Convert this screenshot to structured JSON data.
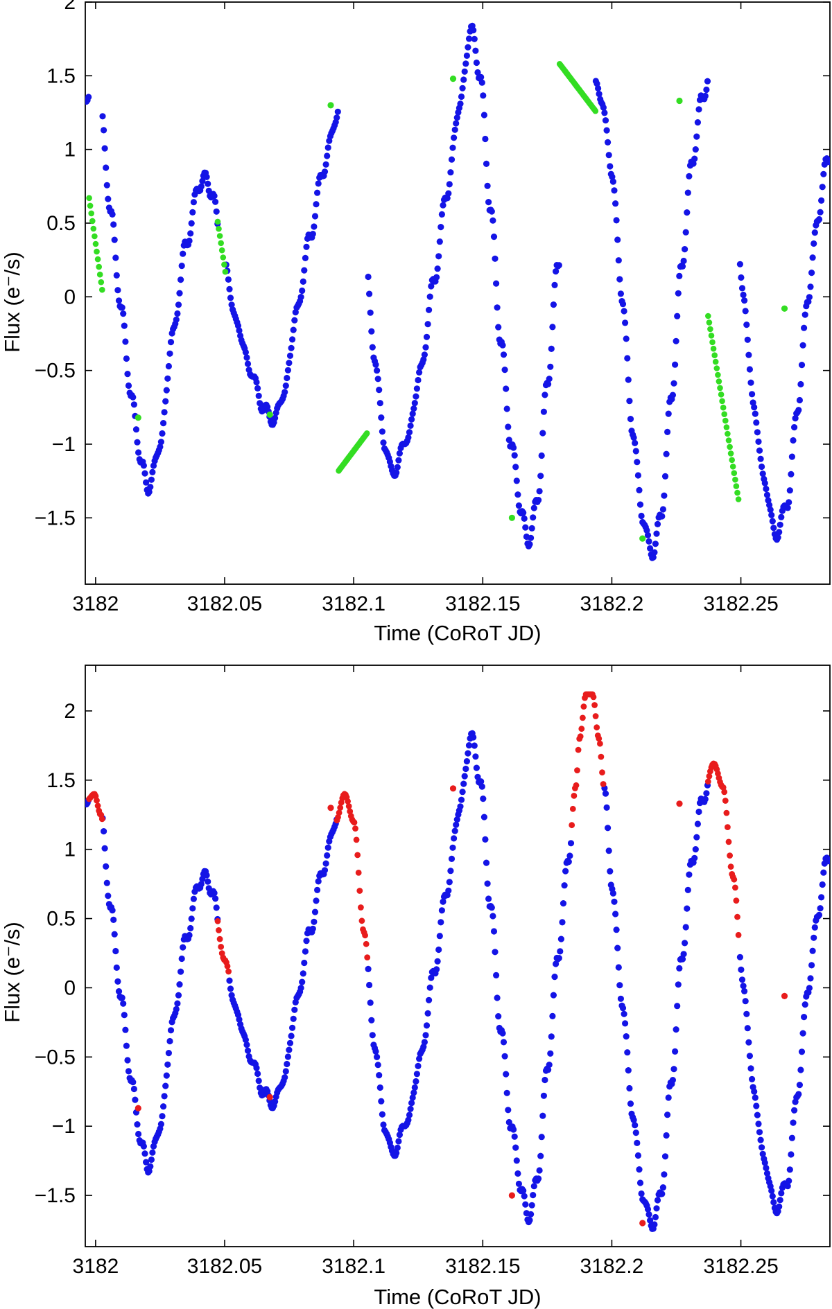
{
  "colors": {
    "raw": "#1414e6",
    "gap_linear": "#33dd22",
    "gap_model": "#e81c1c"
  },
  "chart_data": [
    {
      "type": "scatter",
      "title": "",
      "xlabel": "Time (CoRoT JD)",
      "ylabel": "Flux (e⁻/s)",
      "xlim": [
        3181.996,
        3182.2845
      ],
      "ylim": [
        -1.95,
        2.0
      ],
      "xticks": [
        3182,
        3182.05,
        3182.1,
        3182.15,
        3182.2,
        3182.25
      ],
      "xtick_labels": [
        "3182",
        "3182.05",
        "3182.1",
        "3182.15",
        "3182.2",
        "3182.25"
      ],
      "yticks": [
        -1.5,
        -1,
        -0.5,
        0,
        0.5,
        1,
        1.5,
        2
      ],
      "ytick_labels": [
        "−1.5",
        "−1",
        "−0.5",
        "0",
        "0.5",
        "1",
        "1.5",
        "2"
      ],
      "grid": false,
      "signal_points": [
        [
          3181.997,
          1.36
        ],
        [
          3181.9995,
          1.4
        ],
        [
          3182.002,
          1.25
        ],
        [
          3182.006,
          0.55
        ],
        [
          3182.01,
          -0.1
        ],
        [
          3182.014,
          -0.7
        ],
        [
          3182.018,
          -1.15
        ],
        [
          3182.0205,
          -1.3
        ],
        [
          3182.025,
          -1.0
        ],
        [
          3182.03,
          -0.25
        ],
        [
          3182.035,
          0.35
        ],
        [
          3182.04,
          0.75
        ],
        [
          3182.0425,
          0.81
        ],
        [
          3182.045,
          0.7
        ],
        [
          3182.05,
          0.2
        ],
        [
          3182.055,
          -0.2
        ],
        [
          3182.06,
          -0.5
        ],
        [
          3182.065,
          -0.75
        ],
        [
          3182.069,
          -0.84
        ],
        [
          3182.073,
          -0.65
        ],
        [
          3182.078,
          -0.1
        ],
        [
          3182.083,
          0.4
        ],
        [
          3182.088,
          0.85
        ],
        [
          3182.093,
          1.2
        ],
        [
          3182.0965,
          1.4
        ],
        [
          3182.1,
          1.2
        ],
        [
          3182.104,
          0.4
        ],
        [
          3182.108,
          -0.4
        ],
        [
          3182.112,
          -1.0
        ],
        [
          3182.115,
          -1.2
        ],
        [
          3182.121,
          -0.95
        ],
        [
          3182.126,
          -0.5
        ],
        [
          3182.131,
          0.1
        ],
        [
          3182.136,
          0.7
        ],
        [
          3182.141,
          1.3
        ],
        [
          3182.1455,
          1.82
        ],
        [
          3182.149,
          1.5
        ],
        [
          3182.153,
          0.6
        ],
        [
          3182.157,
          -0.3
        ],
        [
          3182.161,
          -1.0
        ],
        [
          3182.165,
          -1.45
        ],
        [
          3182.1675,
          -1.67
        ],
        [
          3182.171,
          -1.4
        ],
        [
          3182.175,
          -0.6
        ],
        [
          3182.179,
          0.2
        ],
        [
          3182.183,
          0.9
        ],
        [
          3182.1875,
          1.55
        ],
        [
          3182.192,
          1.5
        ],
        [
          3182.196,
          1.35
        ],
        [
          3182.2,
          0.85
        ],
        [
          3182.204,
          0.0
        ],
        [
          3182.208,
          -0.9
        ],
        [
          3182.212,
          -1.5
        ],
        [
          3182.2155,
          -1.75
        ],
        [
          3182.219,
          -1.5
        ],
        [
          3182.223,
          -0.7
        ],
        [
          3182.227,
          0.2
        ],
        [
          3182.231,
          0.9
        ],
        [
          3182.235,
          1.35
        ],
        [
          3182.2395,
          1.62
        ],
        [
          3182.243,
          1.45
        ],
        [
          3182.247,
          0.8
        ],
        [
          3182.251,
          0.0
        ],
        [
          3182.255,
          -0.75
        ],
        [
          3182.259,
          -1.25
        ],
        [
          3182.2635,
          -1.62
        ],
        [
          3182.268,
          -1.4
        ],
        [
          3182.272,
          -0.75
        ],
        [
          3182.276,
          0.0
        ],
        [
          3182.28,
          0.55
        ],
        [
          3182.2835,
          0.95
        ]
      ],
      "series": [
        {
          "role": "raw",
          "color": "#1414e6"
        },
        {
          "role": "gap_linear",
          "color": "#33dd22",
          "points": [
            [
              3181.9975,
              0.67
            ],
            [
              3182.0026,
              0.04
            ],
            [
              3182.0473,
              0.51
            ],
            [
              3182.0505,
              0.14
            ],
            [
              3182.0942,
              -1.18
            ],
            [
              3182.1054,
              -0.92
            ],
            [
              3182.1798,
              1.58
            ],
            [
              3182.1937,
              1.26
            ],
            [
              3182.2373,
              -0.13
            ],
            [
              3182.2494,
              -1.41
            ]
          ],
          "singles": [
            [
              3182.0165,
              -0.82
            ],
            [
              3182.0675,
              -0.8
            ],
            [
              3182.0911,
              1.3
            ],
            [
              3182.1385,
              1.48
            ],
            [
              3182.1613,
              -1.5
            ],
            [
              3182.2119,
              -1.64
            ],
            [
              3182.2262,
              1.33
            ],
            [
              3182.2669,
              -0.08
            ]
          ]
        }
      ]
    },
    {
      "type": "scatter",
      "title": "",
      "xlabel": "Time (CoRoT JD)",
      "ylabel": "Flux (e⁻/s)",
      "xlim": [
        3181.996,
        3182.2845
      ],
      "ylim": [
        -1.87,
        2.33
      ],
      "xticks": [
        3182,
        3182.05,
        3182.1,
        3182.15,
        3182.2,
        3182.25
      ],
      "xtick_labels": [
        "3182",
        "3182.05",
        "3182.1",
        "3182.15",
        "3182.2",
        "3182.25"
      ],
      "yticks": [
        -1.5,
        -1,
        -0.5,
        0,
        0.5,
        1,
        1.5,
        2
      ],
      "ytick_labels": [
        "−1.5",
        "−1",
        "−0.5",
        "0",
        "0.5",
        "1",
        "1.5",
        "2"
      ],
      "grid": false,
      "signal_points": [
        [
          3181.997,
          1.36
        ],
        [
          3181.9995,
          1.4
        ],
        [
          3182.002,
          1.25
        ],
        [
          3182.006,
          0.55
        ],
        [
          3182.01,
          -0.1
        ],
        [
          3182.014,
          -0.7
        ],
        [
          3182.018,
          -1.15
        ],
        [
          3182.0205,
          -1.3
        ],
        [
          3182.025,
          -1.0
        ],
        [
          3182.03,
          -0.25
        ],
        [
          3182.035,
          0.35
        ],
        [
          3182.04,
          0.75
        ],
        [
          3182.0425,
          0.81
        ],
        [
          3182.045,
          0.7
        ],
        [
          3182.05,
          0.2
        ],
        [
          3182.055,
          -0.2
        ],
        [
          3182.06,
          -0.5
        ],
        [
          3182.065,
          -0.75
        ],
        [
          3182.069,
          -0.84
        ],
        [
          3182.073,
          -0.65
        ],
        [
          3182.078,
          -0.1
        ],
        [
          3182.083,
          0.4
        ],
        [
          3182.088,
          0.85
        ],
        [
          3182.093,
          1.2
        ],
        [
          3182.0965,
          1.4
        ],
        [
          3182.1,
          1.2
        ],
        [
          3182.104,
          0.4
        ],
        [
          3182.108,
          -0.4
        ],
        [
          3182.112,
          -1.0
        ],
        [
          3182.115,
          -1.2
        ],
        [
          3182.121,
          -0.95
        ],
        [
          3182.126,
          -0.5
        ],
        [
          3182.131,
          0.1
        ],
        [
          3182.136,
          0.7
        ],
        [
          3182.141,
          1.3
        ],
        [
          3182.1455,
          1.82
        ],
        [
          3182.149,
          1.5
        ],
        [
          3182.153,
          0.6
        ],
        [
          3182.157,
          -0.3
        ],
        [
          3182.161,
          -1.0
        ],
        [
          3182.165,
          -1.45
        ],
        [
          3182.1675,
          -1.67
        ],
        [
          3182.171,
          -1.4
        ],
        [
          3182.175,
          -0.6
        ],
        [
          3182.179,
          0.2
        ],
        [
          3182.183,
          0.9
        ],
        [
          3182.186,
          1.45
        ],
        [
          3182.1875,
          1.8
        ],
        [
          3182.19,
          2.12
        ],
        [
          3182.1925,
          2.12
        ],
        [
          3182.195,
          1.8
        ],
        [
          3182.197,
          1.45
        ],
        [
          3182.2,
          0.75
        ],
        [
          3182.204,
          -0.1
        ],
        [
          3182.208,
          -0.9
        ],
        [
          3182.212,
          -1.5
        ],
        [
          3182.2155,
          -1.72
        ],
        [
          3182.219,
          -1.5
        ],
        [
          3182.223,
          -0.7
        ],
        [
          3182.227,
          0.2
        ],
        [
          3182.231,
          0.9
        ],
        [
          3182.235,
          1.35
        ],
        [
          3182.2395,
          1.62
        ],
        [
          3182.243,
          1.45
        ],
        [
          3182.247,
          0.8
        ],
        [
          3182.251,
          0.0
        ],
        [
          3182.255,
          -0.75
        ],
        [
          3182.259,
          -1.25
        ],
        [
          3182.2635,
          -1.6
        ],
        [
          3182.268,
          -1.4
        ],
        [
          3182.272,
          -0.75
        ],
        [
          3182.276,
          0.0
        ],
        [
          3182.28,
          0.55
        ],
        [
          3182.2835,
          0.95
        ]
      ],
      "series": [
        {
          "role": "raw",
          "color": "#1414e6"
        },
        {
          "role": "gap_model",
          "color": "#e81c1c",
          "gap_windows": [
            [
              3181.9975,
              3182.0026
            ],
            [
              3182.0473,
              3182.0515
            ],
            [
              3182.0935,
              3182.1055
            ],
            [
              3182.1845,
              3182.197
            ],
            [
              3182.2373,
              3182.2494
            ]
          ],
          "singles": [
            [
              3182.0165,
              -0.87
            ],
            [
              3182.0675,
              -0.79
            ],
            [
              3182.0911,
              1.3
            ],
            [
              3182.1385,
              1.44
            ],
            [
              3182.1613,
              -1.5
            ],
            [
              3182.2119,
              -1.7
            ],
            [
              3182.2262,
              1.33
            ],
            [
              3182.2669,
              -0.06
            ]
          ]
        }
      ]
    }
  ]
}
